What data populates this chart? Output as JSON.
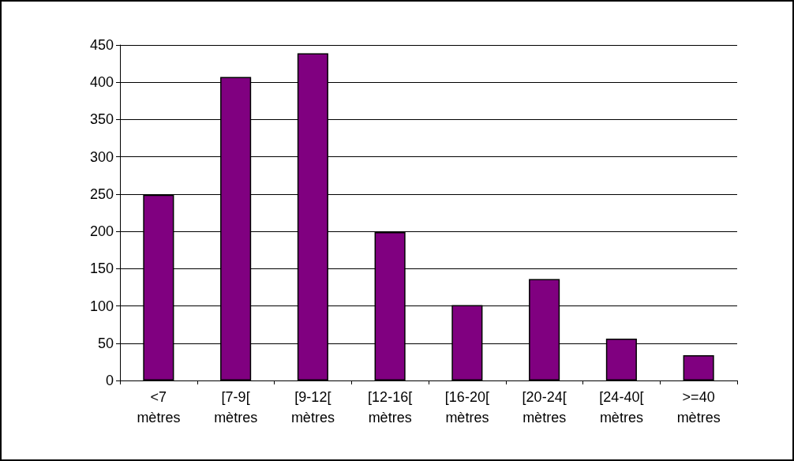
{
  "chart_data": {
    "type": "bar",
    "categories": [
      "<7\nmètres",
      "[7-9[\nmètres",
      "[9-12[\nmètres",
      "[12-16[\nmètres",
      "[16-20[\nmètres",
      "[20-24[\nmètres",
      "[24-40[\nmètres",
      ">=40\nmètres"
    ],
    "values": [
      249,
      407,
      439,
      199,
      101,
      136,
      56,
      34
    ],
    "color": "#800080",
    "ylim": [
      0,
      450
    ],
    "yticks": [
      0,
      50,
      100,
      150,
      200,
      250,
      300,
      350,
      400,
      450
    ],
    "grid": "y"
  }
}
